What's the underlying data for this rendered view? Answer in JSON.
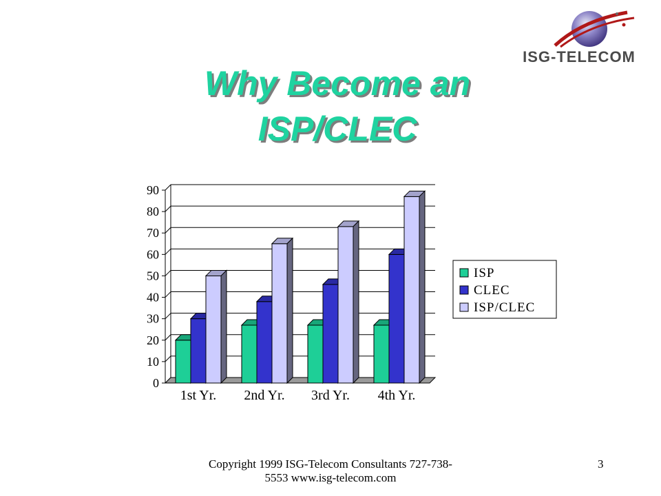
{
  "logo": {
    "text": "ISG-TELECOM",
    "icon": "globe-swoosh-icon"
  },
  "slide": {
    "title_line1": "Why Become an",
    "title_line2": "ISP/CLEC",
    "footer": "Copyright 1999 ISG-Telecom Consultants 727-738-5553 www.isg-telecom.com",
    "page_number": "3"
  },
  "colors": {
    "title": "#1fd3a0",
    "isp": "#1ecf97",
    "clec": "#3333cc",
    "isp_clec": "#ccccff"
  },
  "chart_data": {
    "type": "bar",
    "style": "3d-clustered",
    "categories": [
      "1st Yr.",
      "2nd Yr.",
      "3rd Yr.",
      "4th Yr."
    ],
    "series": [
      {
        "name": "ISP",
        "color": "#1ecf97",
        "values": [
          20,
          27,
          27,
          27
        ]
      },
      {
        "name": "CLEC",
        "color": "#3333cc",
        "values": [
          30,
          38,
          46,
          60
        ]
      },
      {
        "name": "ISP/CLEC",
        "color": "#ccccff",
        "values": [
          50,
          65,
          73,
          87
        ]
      }
    ],
    "ylim": [
      0,
      90
    ],
    "yticks": [
      0,
      10,
      20,
      30,
      40,
      50,
      60,
      70,
      80,
      90
    ],
    "grid": true,
    "legend": "right"
  }
}
